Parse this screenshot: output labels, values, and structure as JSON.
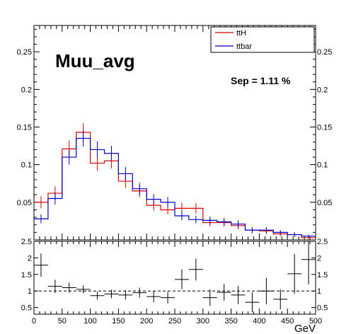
{
  "chart_data": [
    {
      "type": "line",
      "title": "Muu_avg",
      "annotation": "Sep = 1.11 %",
      "xlim": [
        0,
        500
      ],
      "ylim": [
        0,
        0.285
      ],
      "yticks": [
        0.05,
        0.1,
        0.15,
        0.2,
        0.25
      ],
      "ytick_labels": [
        "0.05",
        "0.1",
        "0.15",
        "0.2",
        "0.25"
      ],
      "legend_position": "top-right",
      "x": [
        0,
        25,
        50,
        75,
        100,
        125,
        150,
        175,
        200,
        225,
        250,
        275,
        300,
        325,
        350,
        375,
        400,
        425,
        450,
        475
      ],
      "series": [
        {
          "name": "ttH",
          "color": "#dd0000",
          "values": [
            0.05,
            0.062,
            0.121,
            0.143,
            0.102,
            0.105,
            0.078,
            0.065,
            0.046,
            0.04,
            0.042,
            0.042,
            0.023,
            0.023,
            0.019,
            0.013,
            0.012,
            0.008,
            0.007,
            0.003
          ],
          "errors": [
            0.008,
            0.009,
            0.011,
            0.012,
            0.01,
            0.01,
            0.009,
            0.008,
            0.007,
            0.006,
            0.007,
            0.007,
            0.005,
            0.005,
            0.005,
            0.004,
            0.004,
            0.003,
            0.003,
            0.002
          ]
        },
        {
          "name": "ttbar",
          "color": "#0000cc",
          "values": [
            0.028,
            0.055,
            0.11,
            0.135,
            0.12,
            0.115,
            0.088,
            0.068,
            0.054,
            0.05,
            0.032,
            0.027,
            0.026,
            0.024,
            0.021,
            0.013,
            0.013,
            0.01,
            0.007,
            0.005
          ],
          "errors": [
            0.006,
            0.008,
            0.01,
            0.011,
            0.011,
            0.01,
            0.009,
            0.008,
            0.007,
            0.007,
            0.006,
            0.005,
            0.005,
            0.005,
            0.005,
            0.004,
            0.004,
            0.003,
            0.003,
            0.002
          ]
        }
      ]
    },
    {
      "type": "scatter",
      "xlabel": "GeV",
      "xlim": [
        0,
        500
      ],
      "ylim": [
        0.3,
        2.5
      ],
      "reference_line": 1,
      "xticks": [
        0,
        50,
        100,
        150,
        200,
        250,
        300,
        350,
        400,
        450,
        500
      ],
      "xtick_labels": [
        "0",
        "50",
        "100",
        "150",
        "200",
        "250",
        "300",
        "350",
        "400",
        "450",
        "500"
      ],
      "yticks": [
        0.5,
        1,
        1.5,
        2,
        2.5
      ],
      "ytick_labels": [
        "0.5",
        "1",
        "1.5",
        "2",
        "2.5"
      ],
      "x": [
        12.5,
        37.5,
        62.5,
        87.5,
        112.5,
        137.5,
        162.5,
        187.5,
        212.5,
        237.5,
        262.5,
        287.5,
        312.5,
        337.5,
        362.5,
        387.5,
        412.5,
        437.5,
        462.5,
        487.5
      ],
      "values": [
        1.78,
        1.14,
        1.1,
        1.05,
        0.86,
        0.91,
        0.88,
        0.95,
        0.83,
        0.8,
        1.35,
        1.65,
        0.8,
        0.96,
        0.88,
        0.66,
        1.0,
        0.75,
        1.52,
        1.95
      ],
      "errors": [
        0.35,
        0.2,
        0.15,
        0.12,
        0.12,
        0.13,
        0.14,
        0.15,
        0.17,
        0.18,
        0.3,
        0.33,
        0.25,
        0.25,
        0.27,
        0.3,
        0.4,
        0.3,
        0.6,
        0.75
      ]
    }
  ]
}
